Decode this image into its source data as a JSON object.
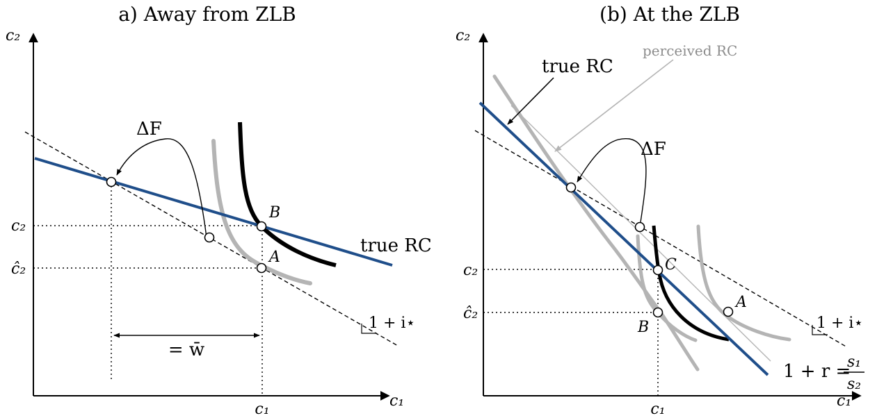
{
  "panels": [
    {
      "title": "a) Away from ZLB",
      "axis_y": "c₂",
      "axis_x": "c₁",
      "tick_y_upper": "c₂",
      "tick_y_lower": "ĉ₂",
      "tick_x": "c₁",
      "curve_label": "true RC",
      "delta_label": "ΔF",
      "wealth_label": "= w̄",
      "slope_label": "1 + i⋆",
      "point_b": "B",
      "point_a": "A"
    },
    {
      "title": "(b) At the ZLB",
      "axis_y": "c₂",
      "axis_x": "c₁",
      "tick_y_upper": "c₂",
      "tick_y_lower": "ĉ₂",
      "tick_x": "c₁",
      "true_rc_label": "true RC",
      "perceived_rc_label": "perceived RC",
      "delta_label": "ΔF",
      "slope_label": "1 + i⋆",
      "rate_label_prefix": "1 + r =",
      "rate_label_num": "s₁",
      "rate_label_den": "s₂",
      "point_c": "C",
      "point_b": "B",
      "point_a": "A"
    }
  ],
  "colors": {
    "true_rc": "#1f4e8a",
    "grey_curve": "#b4b4b4",
    "black_curve": "#000000",
    "perceived_line": "#b4b4b4"
  }
}
